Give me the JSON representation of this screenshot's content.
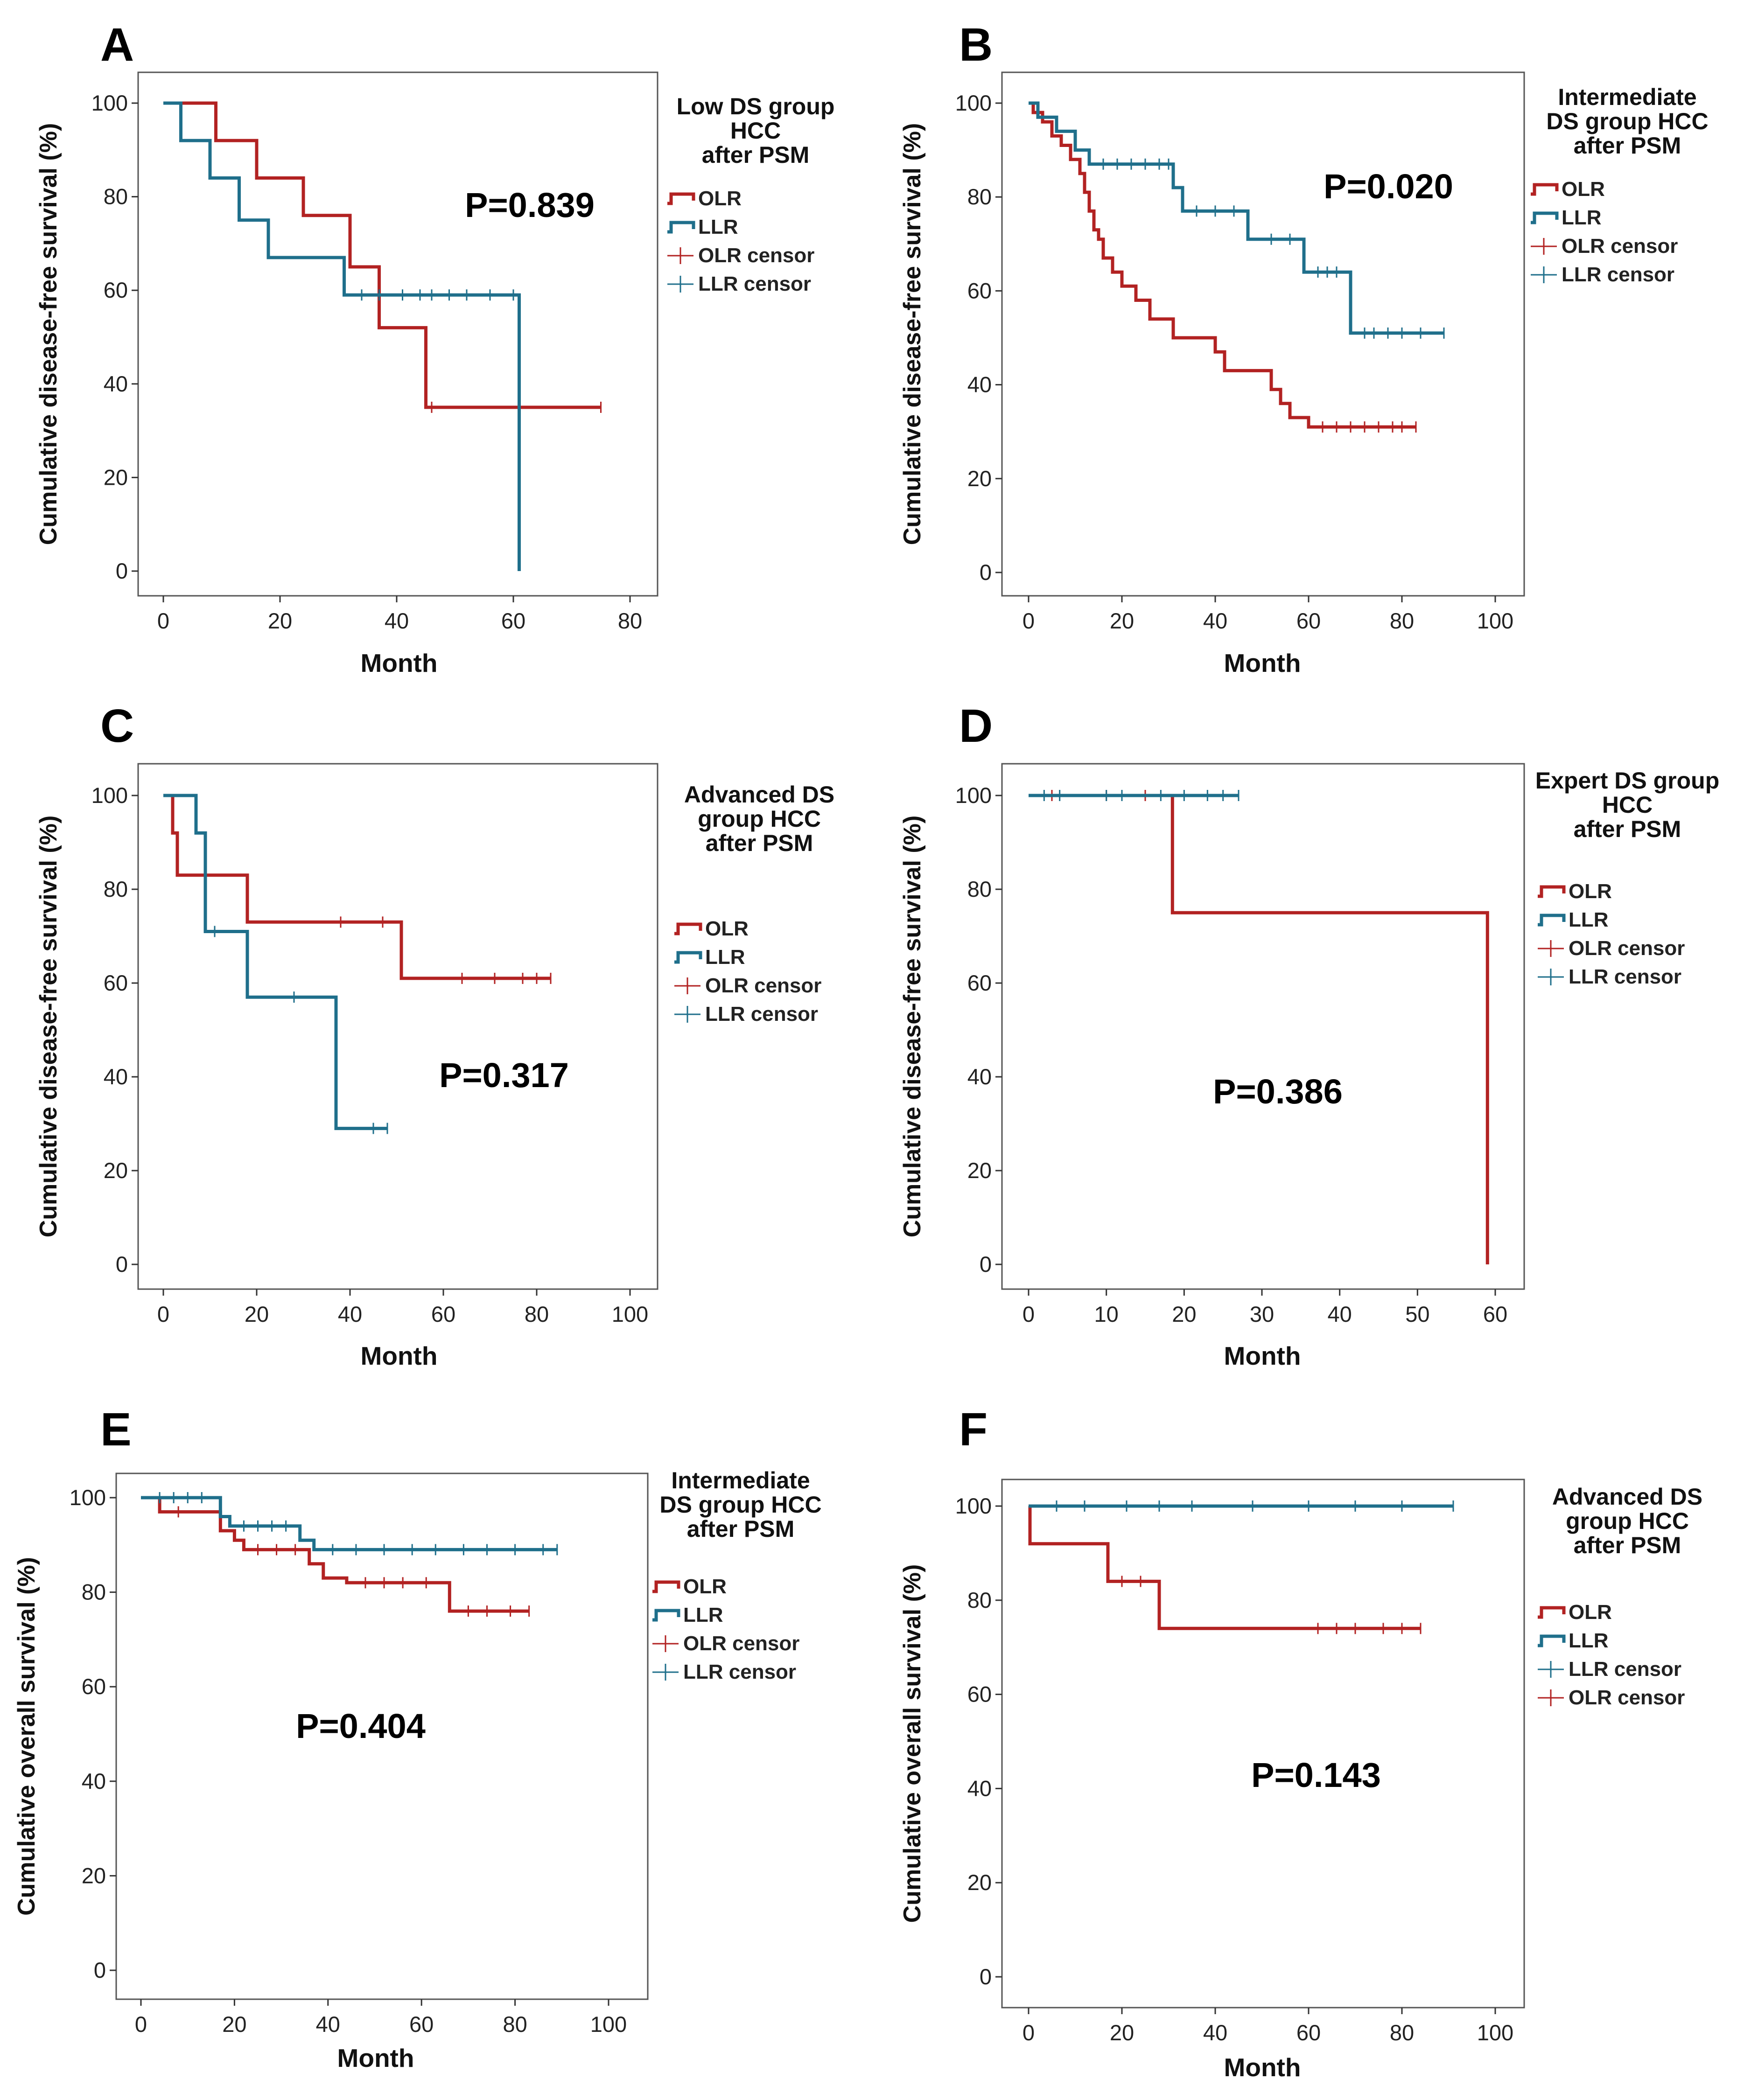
{
  "colors": {
    "OLR": "#b22222",
    "LLR": "#1f6f8b",
    "frame": "#555555",
    "plot_bg": "#ffffff"
  },
  "chart_data": [
    {
      "type": "line",
      "panel": "A",
      "title": "Low DS group HCC after PSM",
      "title_lines": [
        "Low DS group",
        "HCC",
        "after PSM"
      ],
      "xlabel": "Month",
      "ylabel": "Cumulative disease-free survival (%)",
      "xlim": [
        0,
        80
      ],
      "xticks": [
        0,
        20,
        40,
        60,
        80
      ],
      "ylim": [
        0,
        100
      ],
      "yticks": [
        0,
        20,
        40,
        60,
        80,
        100
      ],
      "p_value": "P=0.839",
      "legend": [
        "OLR",
        "LLR",
        "OLR censor",
        "LLR censor"
      ],
      "series": [
        {
          "name": "OLR",
          "color": "#b22222",
          "x": [
            0,
            9,
            9,
            16,
            16,
            24,
            24,
            32,
            32,
            37,
            37,
            45,
            45,
            75
          ],
          "y": [
            100,
            100,
            92,
            92,
            84,
            84,
            76,
            76,
            65,
            65,
            52,
            52,
            35,
            35
          ],
          "censor_x": [
            46,
            75
          ],
          "censor_y": [
            35,
            35
          ]
        },
        {
          "name": "LLR",
          "color": "#1f6f8b",
          "x": [
            0,
            3,
            3,
            8,
            8,
            13,
            13,
            18,
            18,
            31,
            31,
            61,
            61
          ],
          "y": [
            100,
            100,
            92,
            92,
            84,
            84,
            75,
            75,
            67,
            67,
            59,
            59,
            0
          ],
          "censor_x": [
            34,
            37,
            41,
            44,
            46,
            49,
            52,
            56,
            60
          ],
          "censor_y": [
            59,
            59,
            59,
            59,
            59,
            59,
            59,
            59,
            59
          ]
        }
      ]
    },
    {
      "type": "line",
      "panel": "B",
      "title": "Intermediate DS group HCC after PSM",
      "title_lines": [
        "Intermediate",
        "DS group HCC",
        "after PSM"
      ],
      "xlabel": "Month",
      "ylabel": "Cumulative disease-free survival (%)",
      "xlim": [
        0,
        100
      ],
      "xticks": [
        0,
        20,
        40,
        60,
        80,
        100
      ],
      "ylim": [
        0,
        100
      ],
      "yticks": [
        0,
        20,
        40,
        60,
        80,
        100
      ],
      "p_value": "P=0.020",
      "legend": [
        "OLR",
        "LLR",
        "OLR censor",
        "LLR censor"
      ],
      "series": [
        {
          "name": "OLR",
          "color": "#b22222",
          "x": [
            0,
            1,
            1,
            3,
            3,
            5,
            5,
            7,
            7,
            9,
            9,
            11,
            11,
            12,
            12,
            13,
            13,
            14,
            14,
            15,
            15,
            16,
            16,
            18,
            18,
            20,
            20,
            23,
            23,
            26,
            26,
            31,
            31,
            40,
            40,
            42,
            42,
            52,
            52,
            54,
            54,
            56,
            56,
            60,
            60,
            83
          ],
          "y": [
            100,
            100,
            98,
            98,
            96,
            96,
            93,
            93,
            91,
            91,
            88,
            88,
            85,
            85,
            81,
            81,
            77,
            77,
            73,
            73,
            71,
            71,
            67,
            67,
            64,
            64,
            61,
            61,
            58,
            58,
            54,
            54,
            50,
            50,
            47,
            47,
            43,
            43,
            39,
            39,
            36,
            36,
            33,
            33,
            31,
            31
          ],
          "censor_x": [
            63,
            66,
            69,
            72,
            75,
            78,
            80,
            83
          ],
          "censor_y": [
            31,
            31,
            31,
            31,
            31,
            31,
            31,
            31
          ]
        },
        {
          "name": "LLR",
          "color": "#1f6f8b",
          "x": [
            0,
            2,
            2,
            6,
            6,
            10,
            10,
            13,
            13,
            31,
            31,
            33,
            33,
            47,
            47,
            59,
            59,
            69,
            69,
            89
          ],
          "y": [
            100,
            100,
            97,
            97,
            94,
            94,
            90,
            90,
            87,
            87,
            82,
            82,
            77,
            77,
            71,
            71,
            64,
            64,
            51,
            51
          ],
          "censor_x": [
            16,
            19,
            22,
            25,
            28,
            30,
            36,
            40,
            44,
            52,
            56,
            62,
            64,
            66,
            72,
            74,
            77,
            80,
            84,
            89
          ],
          "censor_y": [
            87,
            87,
            87,
            87,
            87,
            87,
            77,
            77,
            77,
            71,
            71,
            64,
            64,
            64,
            51,
            51,
            51,
            51,
            51,
            51
          ]
        }
      ]
    },
    {
      "type": "line",
      "panel": "C",
      "title": "Advanced DS group HCC after PSM",
      "title_lines": [
        "Advanced DS",
        "group HCC",
        "after PSM"
      ],
      "xlabel": "Month",
      "ylabel": "Cumulative disease-free survival (%)",
      "xlim": [
        0,
        100
      ],
      "xticks": [
        0,
        20,
        40,
        60,
        80,
        100
      ],
      "ylim": [
        0,
        100
      ],
      "yticks": [
        0,
        20,
        40,
        60,
        80,
        100
      ],
      "p_value": "P=0.317",
      "legend": [
        "OLR",
        "LLR",
        "OLR censor",
        "LLR censor"
      ],
      "series": [
        {
          "name": "OLR",
          "color": "#b22222",
          "x": [
            0,
            2,
            2,
            3,
            3,
            18,
            18,
            51,
            51,
            83
          ],
          "y": [
            100,
            100,
            92,
            92,
            83,
            83,
            73,
            73,
            61,
            61
          ],
          "censor_x": [
            38,
            47,
            64,
            71,
            77,
            80,
            83
          ],
          "censor_y": [
            73,
            73,
            61,
            61,
            61,
            61,
            61
          ]
        },
        {
          "name": "LLR",
          "color": "#1f6f8b",
          "x": [
            0,
            7,
            7,
            9,
            9,
            18,
            18,
            37,
            37,
            48
          ],
          "y": [
            100,
            100,
            92,
            92,
            71,
            71,
            57,
            57,
            29,
            29
          ],
          "censor_x": [
            11,
            28,
            45,
            48
          ],
          "censor_y": [
            71,
            57,
            29,
            29
          ]
        }
      ]
    },
    {
      "type": "line",
      "panel": "D",
      "title": "Expert DS group HCC after PSM",
      "title_lines": [
        "Expert DS group",
        "HCC",
        "after PSM"
      ],
      "xlabel": "",
      "ylabel": "Cumulative disease-free survival (%)",
      "xlim": [
        0,
        60
      ],
      "xticks": [
        0,
        10,
        20,
        30,
        40,
        50,
        60
      ],
      "ylim": [
        0,
        100
      ],
      "yticks": [
        0,
        20,
        40,
        60,
        80,
        100
      ],
      "p_value": "P=0.386",
      "legend": [
        "OLR",
        "LLR",
        "OLR censor",
        "LLR censor"
      ],
      "series": [
        {
          "name": "OLR",
          "color": "#b22222",
          "x": [
            0,
            18.5,
            18.5,
            59,
            59
          ],
          "y": [
            100,
            100,
            75,
            75,
            0
          ],
          "censor_x": [
            3,
            10,
            15
          ],
          "censor_y": [
            100,
            100,
            100
          ]
        },
        {
          "name": "LLR",
          "color": "#1f6f8b",
          "x": [
            0,
            27
          ],
          "y": [
            100,
            100
          ],
          "censor_x": [
            2,
            4,
            10,
            12,
            17,
            20,
            23,
            25,
            27
          ],
          "censor_y": [
            100,
            100,
            100,
            100,
            100,
            100,
            100,
            100,
            100
          ]
        }
      ]
    },
    {
      "type": "line",
      "panel": "E",
      "title": "Intermediate DS group HCC after PSM",
      "title_lines": [
        "Intermediate",
        "DS group HCC",
        "after PSM"
      ],
      "xlabel": "Month",
      "ylabel": "Cumulative overall survival (%)",
      "xlim": [
        0,
        100
      ],
      "xticks": [
        0,
        20,
        40,
        60,
        80,
        100
      ],
      "ylim": [
        0,
        100
      ],
      "yticks": [
        0,
        20,
        40,
        60,
        80,
        100
      ],
      "p_value": "P=0.404",
      "legend": [
        "OLR",
        "LLR",
        "OLR censor",
        "LLR censor"
      ],
      "series": [
        {
          "name": "OLR",
          "color": "#b22222",
          "x": [
            0,
            4,
            4,
            17,
            17,
            20,
            20,
            22,
            22,
            36,
            36,
            39,
            39,
            44,
            44,
            66,
            66,
            83
          ],
          "y": [
            100,
            100,
            97,
            97,
            93,
            93,
            91,
            91,
            89,
            89,
            86,
            86,
            83,
            83,
            82,
            82,
            76,
            76
          ],
          "censor_x": [
            8,
            25,
            29,
            33,
            48,
            52,
            56,
            61,
            70,
            74,
            79,
            83
          ],
          "censor_y": [
            97,
            89,
            89,
            89,
            82,
            82,
            82,
            82,
            76,
            76,
            76,
            76
          ]
        },
        {
          "name": "LLR",
          "color": "#1f6f8b",
          "x": [
            0,
            17,
            17,
            19,
            19,
            34,
            34,
            37,
            37,
            89
          ],
          "y": [
            100,
            100,
            96,
            96,
            94,
            94,
            91,
            91,
            89,
            89
          ],
          "censor_x": [
            4,
            7,
            10,
            13,
            22,
            25,
            28,
            31,
            41,
            46,
            52,
            58,
            63,
            69,
            74,
            80,
            86,
            89
          ],
          "censor_y": [
            100,
            100,
            100,
            100,
            94,
            94,
            94,
            94,
            89,
            89,
            89,
            89,
            89,
            89,
            89,
            89,
            89,
            89
          ]
        }
      ]
    },
    {
      "type": "line",
      "panel": "F",
      "title": "Advanced DS group HCC after PSM",
      "title_lines": [
        "Advanced DS",
        "group HCC",
        "after PSM"
      ],
      "xlabel": "Month",
      "ylabel": "Cumulative overall survival (%)",
      "xlim": [
        0,
        100
      ],
      "xticks": [
        0,
        20,
        40,
        60,
        80,
        100
      ],
      "ylim": [
        0,
        100
      ],
      "yticks": [
        0,
        20,
        40,
        60,
        80,
        100
      ],
      "p_value": "P=0.143",
      "legend": [
        "OLR",
        "LLR",
        "LLR censor",
        "OLR censor"
      ],
      "series": [
        {
          "name": "OLR",
          "color": "#b22222",
          "x": [
            0,
            0.3,
            0.3,
            17,
            17,
            28,
            28,
            84
          ],
          "y": [
            100,
            100,
            92,
            92,
            84,
            84,
            74,
            74
          ],
          "censor_x": [
            20,
            24,
            62,
            66,
            70,
            76,
            80,
            84
          ],
          "censor_y": [
            84,
            84,
            74,
            74,
            74,
            74,
            74,
            74
          ]
        },
        {
          "name": "LLR",
          "color": "#1f6f8b",
          "x": [
            0,
            91
          ],
          "y": [
            100,
            100
          ],
          "censor_x": [
            6,
            12,
            21,
            28,
            35,
            48,
            60,
            70,
            80,
            91
          ],
          "censor_y": [
            100,
            100,
            100,
            100,
            100,
            100,
            100,
            100,
            100,
            100
          ]
        }
      ]
    }
  ]
}
